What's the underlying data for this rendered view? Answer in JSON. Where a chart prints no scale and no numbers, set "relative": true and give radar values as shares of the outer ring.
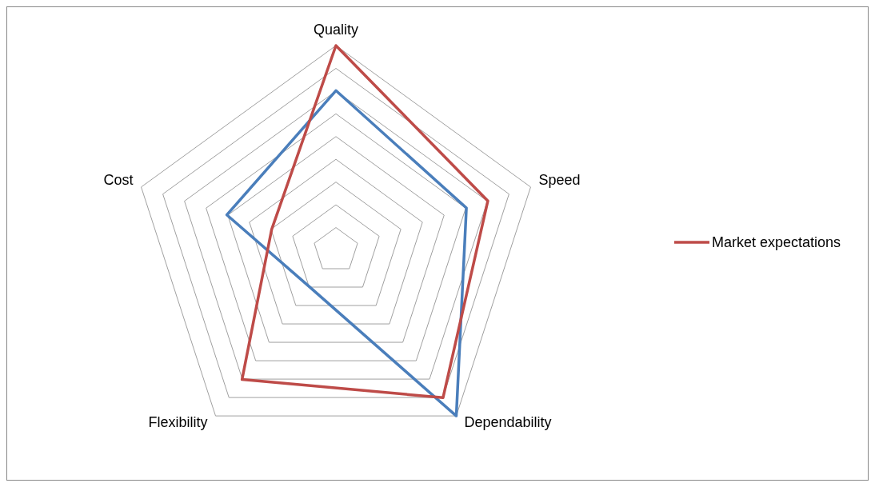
{
  "chart_data": {
    "type": "radar",
    "relative": true,
    "categories": [
      "Quality",
      "Speed",
      "Dependability",
      "Flexibility",
      "Cost"
    ],
    "series": [
      {
        "color": "#4a7ebb",
        "values": [
          0.78,
          0.67,
          1,
          0.22,
          0.56
        ]
      },
      {
        "name": "Market expectations",
        "color": "#be4b48",
        "values": [
          1,
          0.78,
          0.89,
          0.78,
          0.33
        ]
      }
    ],
    "grid": true,
    "legend": "right"
  }
}
